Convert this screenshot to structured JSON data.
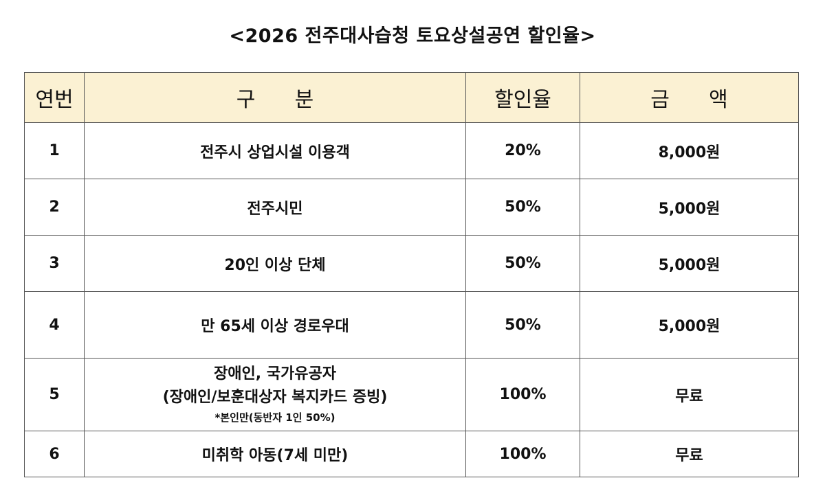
{
  "title": "<2026 전주대사습청 토요상설공연 할인율>",
  "table": {
    "headers": {
      "no": "연번",
      "category": "구      분",
      "rate": "할인율",
      "amount": "금      액"
    },
    "rows": [
      {
        "no": "1",
        "category": "전주시 상업시설 이용객",
        "rate": "20%",
        "amount": "8,000원"
      },
      {
        "no": "2",
        "category": "전주시민",
        "rate": "50%",
        "amount": "5,000원"
      },
      {
        "no": "3",
        "category": "20인 이상 단체",
        "rate": "50%",
        "amount": "5,000원"
      },
      {
        "no": "4",
        "category": "만 65세 이상 경로우대",
        "rate": "50%",
        "amount": "5,000원"
      },
      {
        "no": "5",
        "category_line1": "장애인, 국가유공자",
        "category_line2": "(장애인/보훈대상자 복지카드 증빙)",
        "category_note": "*본인만(동반자 1인 50%)",
        "rate": "100%",
        "amount": "무료"
      },
      {
        "no": "6",
        "category": "미취학 아동(7세 미만)",
        "rate": "100%",
        "amount": "무료"
      }
    ]
  }
}
